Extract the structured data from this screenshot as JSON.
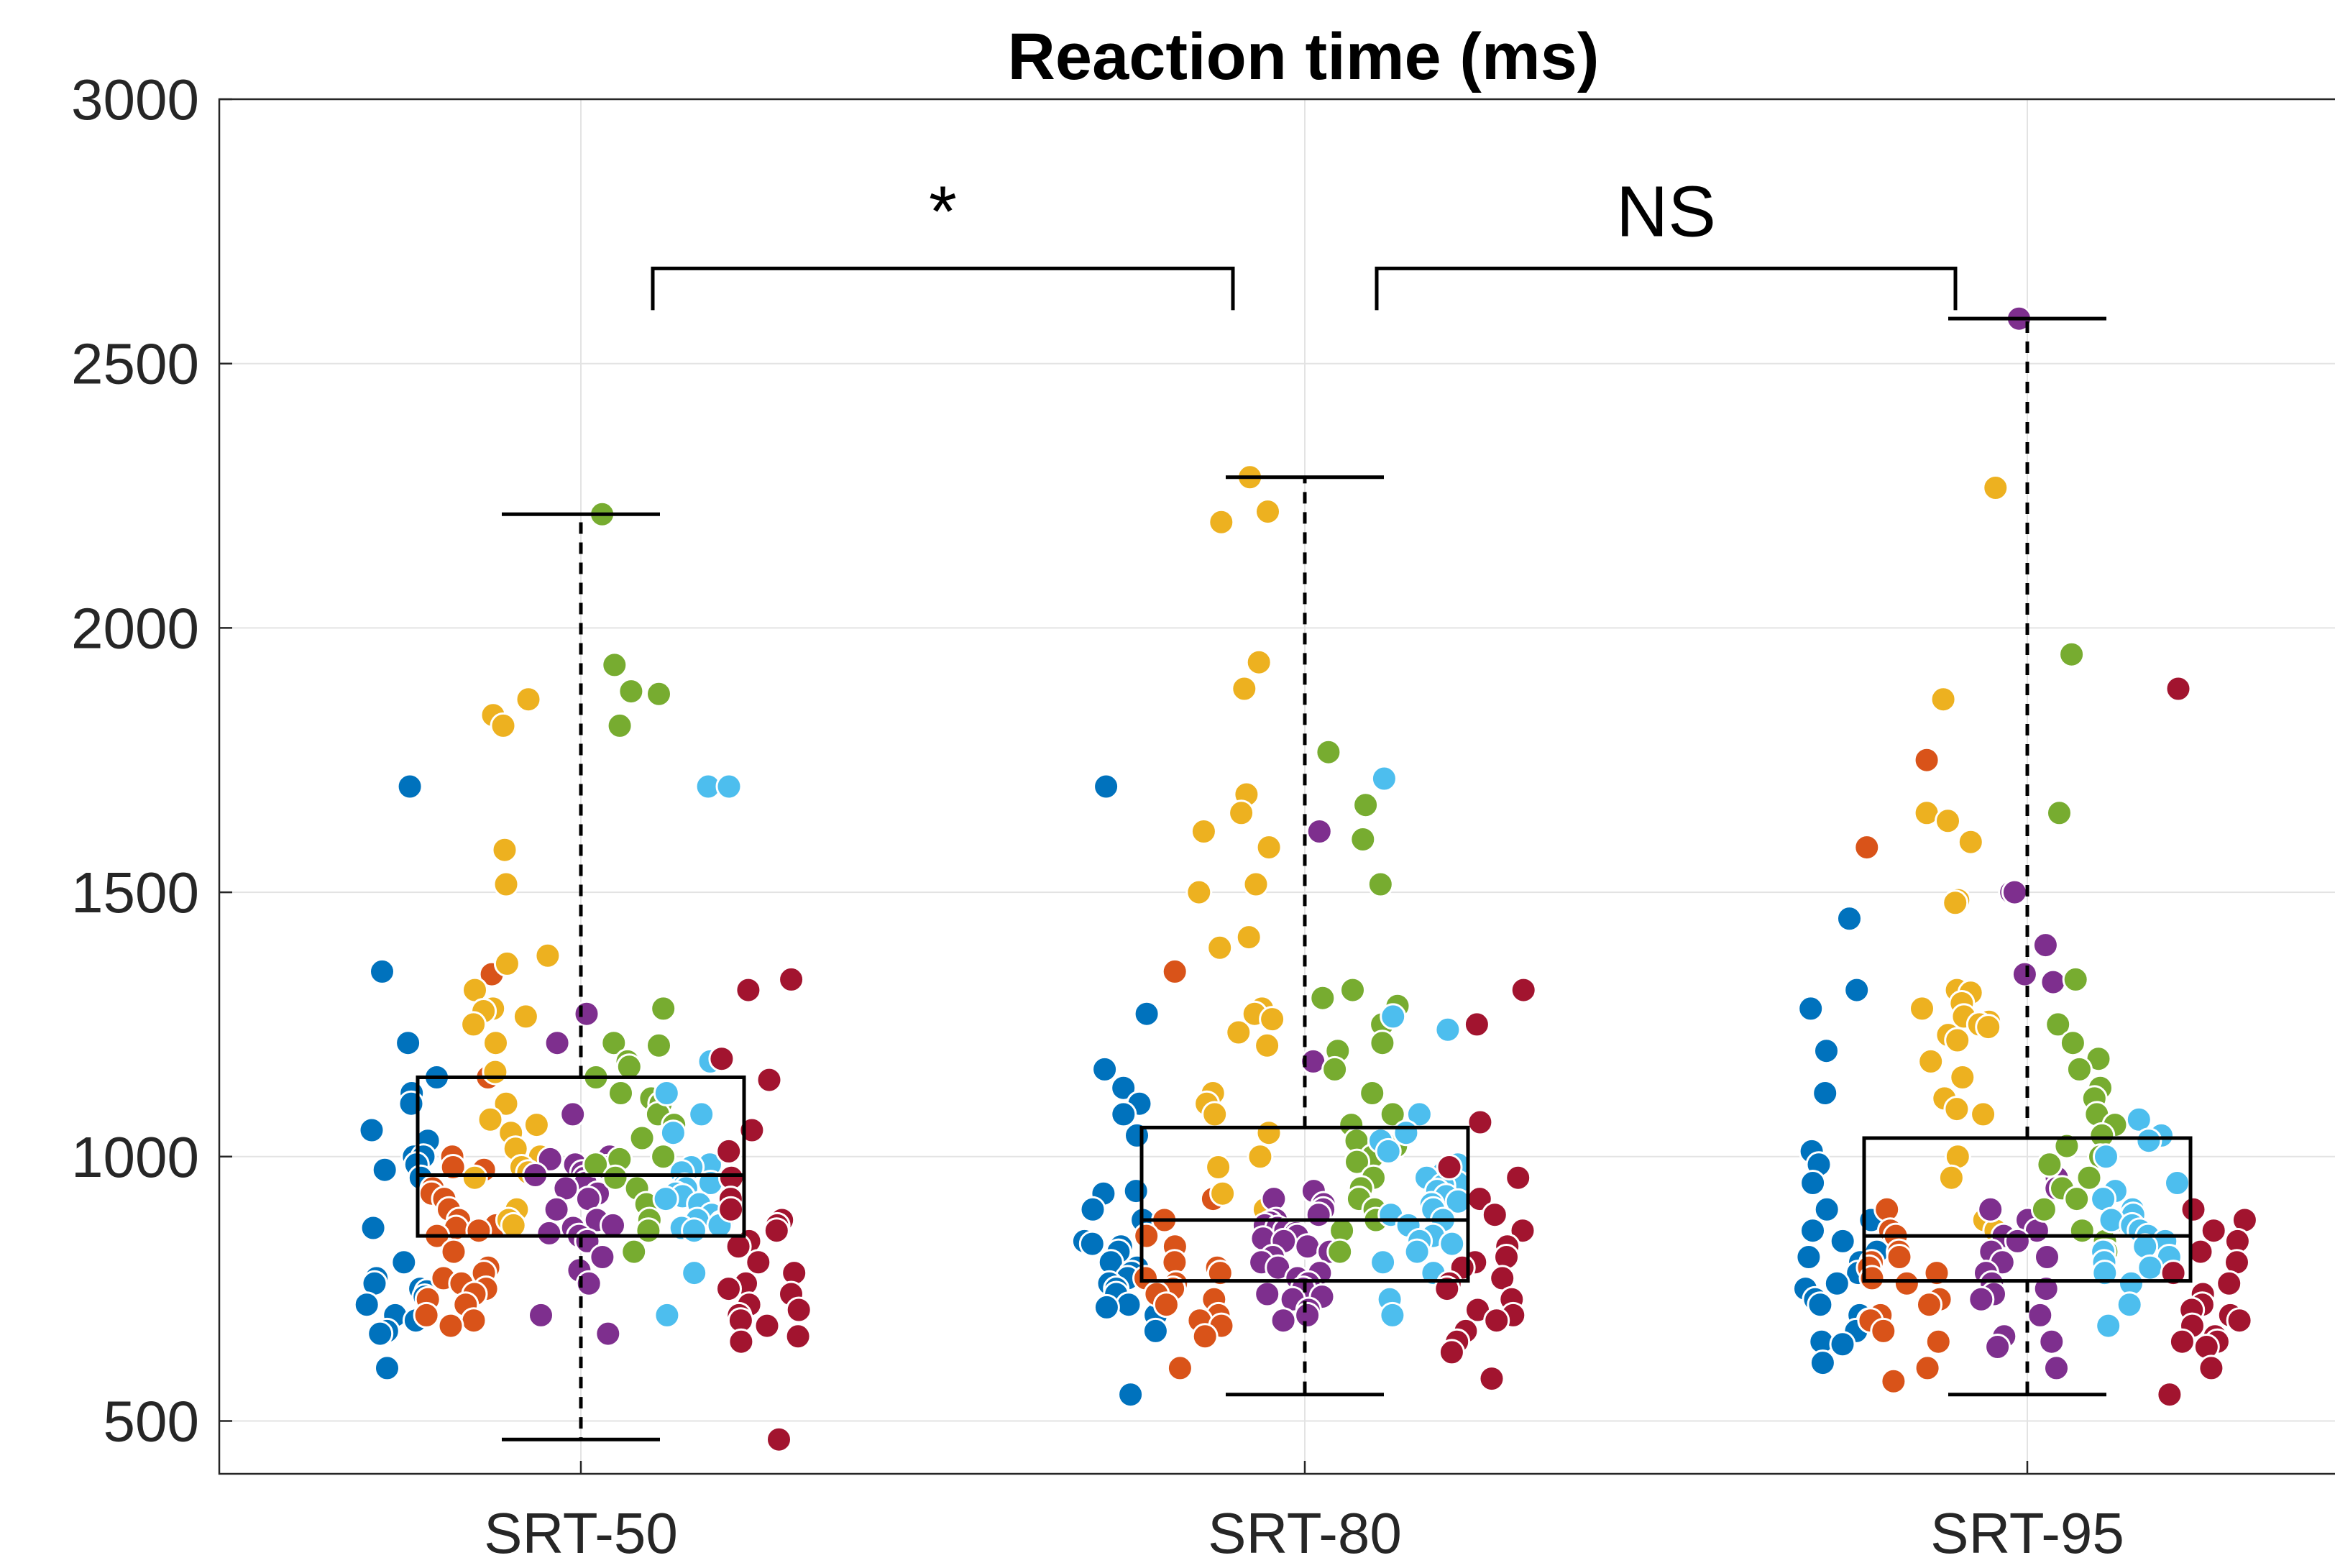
{
  "chart_data": {
    "type": "box-scatter",
    "title": "Reaction time (ms)",
    "categories": [
      "SRT-50",
      "SRT-80",
      "SRT-95"
    ],
    "ylim": [
      400,
      3000
    ],
    "yticks": [
      500,
      1000,
      1500,
      2000,
      2500,
      3000
    ],
    "grid": true,
    "colors": [
      "#0072BD",
      "#D95319",
      "#EDB120",
      "#7E2F8E",
      "#77AC30",
      "#4DBEEE",
      "#A2142F"
    ],
    "boxes": [
      {
        "category": "SRT-50",
        "q1": 850,
        "median": 965,
        "q3": 1150,
        "whisker_low": 465,
        "whisker_high": 2215
      },
      {
        "category": "SRT-80",
        "q1": 765,
        "median": 880,
        "q3": 1055,
        "whisker_low": 550,
        "whisker_high": 2285
      },
      {
        "category": "SRT-95",
        "q1": 765,
        "median": 850,
        "q3": 1035,
        "whisker_low": 550,
        "whisker_high": 2585
      }
    ],
    "annotations": [
      {
        "text": "*",
        "from": "SRT-50",
        "to": "SRT-80",
        "y": 2680
      },
      {
        "text": "NS",
        "from": "SRT-80",
        "to": "SRT-95",
        "y": 2680
      }
    ],
    "points": [
      [
        [
          1700,
          1350,
          1215,
          1150,
          1120,
          1100,
          1050,
          1030,
          1000,
          1000,
          985,
          975,
          960,
          865,
          800,
          770,
          760,
          750,
          745,
          735,
          720,
          700,
          690,
          670,
          665,
          600
        ],
        [
          1345,
          1150,
          1000,
          980,
          975,
          940,
          930,
          920,
          900,
          880,
          870,
          865,
          860,
          850,
          820,
          790,
          780,
          770,
          760,
          750,
          740,
          730,
          720,
          700,
          690,
          680
        ],
        [
          1865,
          1835,
          1815,
          1580,
          1515,
          1380,
          1365,
          1315,
          1280,
          1275,
          1265,
          1250,
          1215,
          1160,
          1100,
          1070,
          1060,
          1045,
          1015,
          1000,
          980,
          970,
          960,
          900,
          880,
          870
        ],
        [
          1270,
          1215,
          1080,
          1000,
          995,
          985,
          980,
          970,
          965,
          960,
          950,
          940,
          930,
          920,
          900,
          880,
          870,
          865,
          855,
          850,
          840,
          810,
          785,
          760,
          700,
          665
        ],
        [
          2215,
          1930,
          1880,
          1875,
          1815,
          1280,
          1215,
          1210,
          1180,
          1170,
          1150,
          1120,
          1110,
          1100,
          1080,
          1060,
          1035,
          1000,
          995,
          985,
          960,
          940,
          910,
          880,
          860,
          820
        ],
        [
          1700,
          1700,
          1180,
          1120,
          1080,
          1045,
          985,
          980,
          970,
          950,
          945,
          940,
          930,
          925,
          920,
          910,
          900,
          890,
          880,
          875,
          870,
          865,
          860,
          780,
          700
        ],
        [
          1335,
          1315,
          1185,
          1145,
          1050,
          1010,
          960,
          920,
          900,
          880,
          870,
          860,
          840,
          830,
          800,
          780,
          760,
          750,
          740,
          720,
          710,
          700,
          690,
          680,
          660,
          650,
          465
        ]
      ],
      [
        [
          1700,
          1270,
          1165,
          1130,
          1100,
          1080,
          1040,
          935,
          930,
          900,
          880,
          840,
          835,
          830,
          820,
          800,
          790,
          780,
          770,
          760,
          750,
          740,
          720,
          715,
          700,
          670,
          550
        ],
        [
          1350,
          920,
          880,
          850,
          830,
          800,
          790,
          780,
          770,
          760,
          750,
          740,
          730,
          720,
          700,
          690,
          680,
          660,
          600
        ],
        [
          2285,
          2220,
          2200,
          1935,
          1885,
          1685,
          1650,
          1615,
          1585,
          1515,
          1500,
          1415,
          1395,
          1280,
          1270,
          1260,
          1235,
          1210,
          1120,
          1100,
          1080,
          1045,
          1000,
          980,
          930,
          900
        ],
        [
          1615,
          1180,
          935,
          920,
          910,
          900,
          890,
          880,
          875,
          870,
          865,
          860,
          855,
          850,
          845,
          840,
          830,
          820,
          810,
          800,
          790,
          780,
          770,
          760,
          750,
          740,
          735,
          730,
          710,
          700,
          690
        ],
        [
          1765,
          1665,
          1600,
          1515,
          1315,
          1300,
          1285,
          1250,
          1215,
          1200,
          1165,
          1120,
          1080,
          1060,
          1030,
          1020,
          1000,
          990,
          960,
          940,
          920,
          900,
          880,
          860,
          820
        ],
        [
          1715,
          1265,
          1240,
          1080,
          1045,
          1030,
          1010,
          985,
          970,
          960,
          950,
          945,
          935,
          925,
          915,
          910,
          900,
          890,
          880,
          870,
          850,
          840,
          835,
          820,
          800,
          780,
          730,
          700
        ],
        [
          1315,
          1250,
          1065,
          980,
          960,
          920,
          890,
          860,
          830,
          810,
          800,
          790,
          770,
          760,
          750,
          730,
          710,
          700,
          690,
          670,
          650,
          630,
          580
        ]
      ],
      [
        [
          1450,
          1315,
          1280,
          1200,
          1120,
          1010,
          985,
          950,
          900,
          880,
          860,
          840,
          820,
          810,
          800,
          780,
          760,
          750,
          730,
          720,
          700,
          690,
          670,
          650,
          645,
          610
        ],
        [
          1750,
          1585,
          900,
          860,
          850,
          820,
          810,
          800,
          790,
          780,
          770,
          760,
          730,
          720,
          700,
          690,
          670,
          650,
          600,
          575
        ],
        [
          2265,
          1865,
          1650,
          1635,
          1595,
          1485,
          1480,
          1315,
          1310,
          1290,
          1280,
          1265,
          1255,
          1250,
          1245,
          1230,
          1220,
          1180,
          1150,
          1110,
          1090,
          1080,
          1000,
          960,
          880,
          860
        ],
        [
          2585,
          1500,
          1500,
          1400,
          1345,
          1330,
          960,
          940,
          900,
          880,
          860,
          850,
          840,
          820,
          810,
          800,
          780,
          760,
          750,
          740,
          730,
          700,
          660,
          650,
          640,
          600
        ],
        [
          1950,
          1650,
          1335,
          1250,
          1215,
          1185,
          1165,
          1130,
          1110,
          1080,
          1060,
          1040,
          1020,
          1000,
          985,
          960,
          940,
          920,
          900,
          880,
          860,
          840,
          820
        ],
        [
          1070,
          1040,
          1030,
          1000,
          950,
          935,
          920,
          900,
          890,
          880,
          870,
          860,
          850,
          840,
          830,
          820,
          810,
          800,
          790,
          780,
          760,
          720,
          680
        ],
        [
          1885,
          900,
          880,
          860,
          840,
          820,
          800,
          780,
          760,
          740,
          720,
          710,
          700,
          690,
          680,
          660,
          650,
          650,
          640,
          600,
          550
        ]
      ]
    ]
  }
}
